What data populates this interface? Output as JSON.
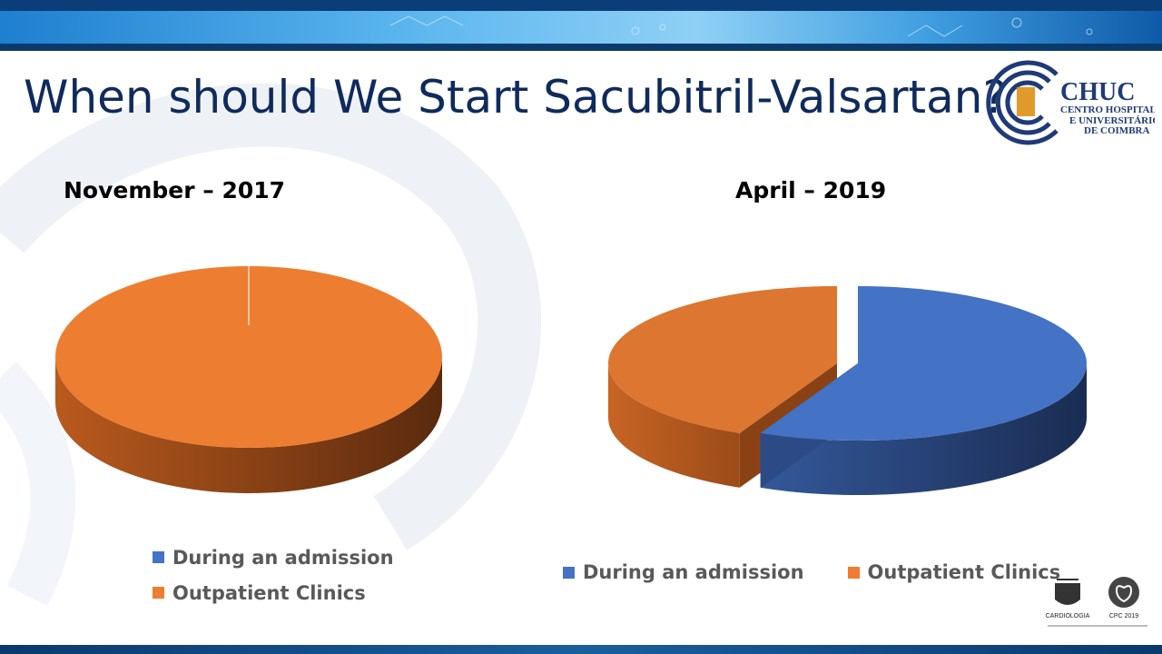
{
  "slide": {
    "title": "When should We Start Sacubitril-Valsartan?",
    "accent_color": "#0f2a5c"
  },
  "logo": {
    "name": "CHUC",
    "line1": "CENTRO HOSPITALAR",
    "line2": "E UNIVERSITÁRIO",
    "line3": "DE COIMBRA"
  },
  "footer_logos": {
    "spc_label": "CARDIOLOGIA",
    "cpc_label": "CPC 2019"
  },
  "chart_data": [
    {
      "type": "pie",
      "style": "3d",
      "title": "November – 2017",
      "categories": [
        "During an admission",
        "Outpatient Clinics"
      ],
      "values": [
        0,
        100
      ],
      "colors": [
        "#4472c4",
        "#ed7d31"
      ],
      "legend_position": "bottom-left"
    },
    {
      "type": "pie",
      "style": "3d-exploded",
      "title": "April – 2019",
      "categories": [
        "During an admission",
        "Outpatient Clinics"
      ],
      "values": [
        57,
        43
      ],
      "colors": [
        "#4472c4",
        "#ed7d31"
      ],
      "legend_position": "bottom"
    }
  ]
}
